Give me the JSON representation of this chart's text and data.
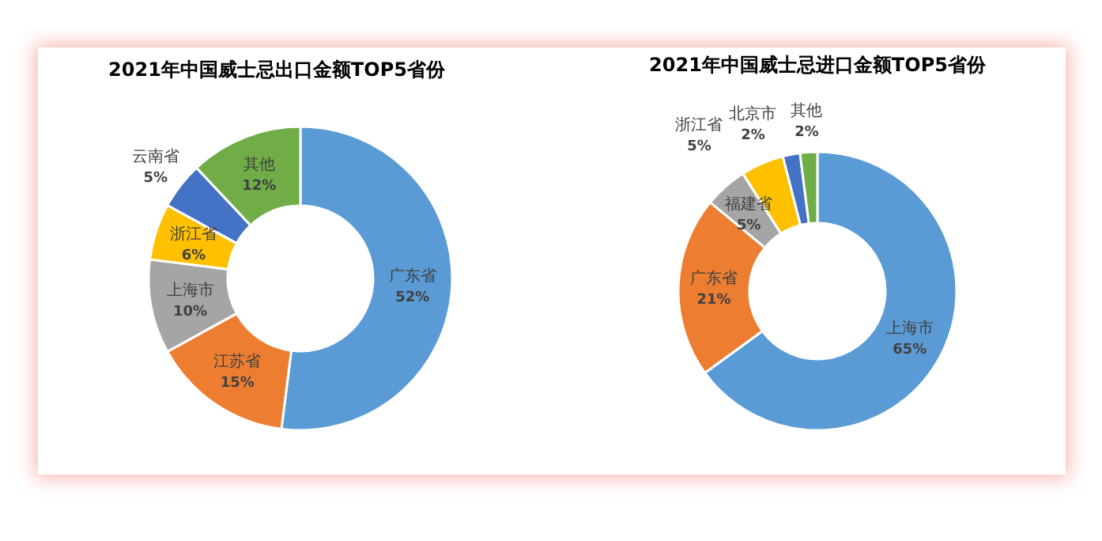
{
  "chart_data": [
    {
      "type": "donut",
      "title": "2021年中国威士忌出口金额TOP5省份",
      "categories": [
        "广东省",
        "江苏省",
        "上海市",
        "浙江省",
        "云南省",
        "其他"
      ],
      "values": [
        52,
        15,
        10,
        6,
        5,
        12
      ],
      "value_labels": [
        "52%",
        "15%",
        "10%",
        "6%",
        "5%",
        "12%"
      ],
      "colors": [
        "#5b9bd5",
        "#ed7d31",
        "#a5a5a5",
        "#ffc000",
        "#4472c4",
        "#70ad47"
      ],
      "legend": false
    },
    {
      "type": "donut",
      "title": "2021年中国威士忌进口金额TOP5省份",
      "categories": [
        "上海市",
        "广东省",
        "福建省",
        "浙江省",
        "北京市",
        "其他"
      ],
      "values": [
        65,
        21,
        5,
        5,
        2,
        2
      ],
      "value_labels": [
        "65%",
        "21%",
        "5%",
        "5%",
        "2%",
        "2%"
      ],
      "colors": [
        "#5b9bd5",
        "#ed7d31",
        "#a5a5a5",
        "#ffc000",
        "#4472c4",
        "#70ad47"
      ],
      "legend": false
    }
  ]
}
